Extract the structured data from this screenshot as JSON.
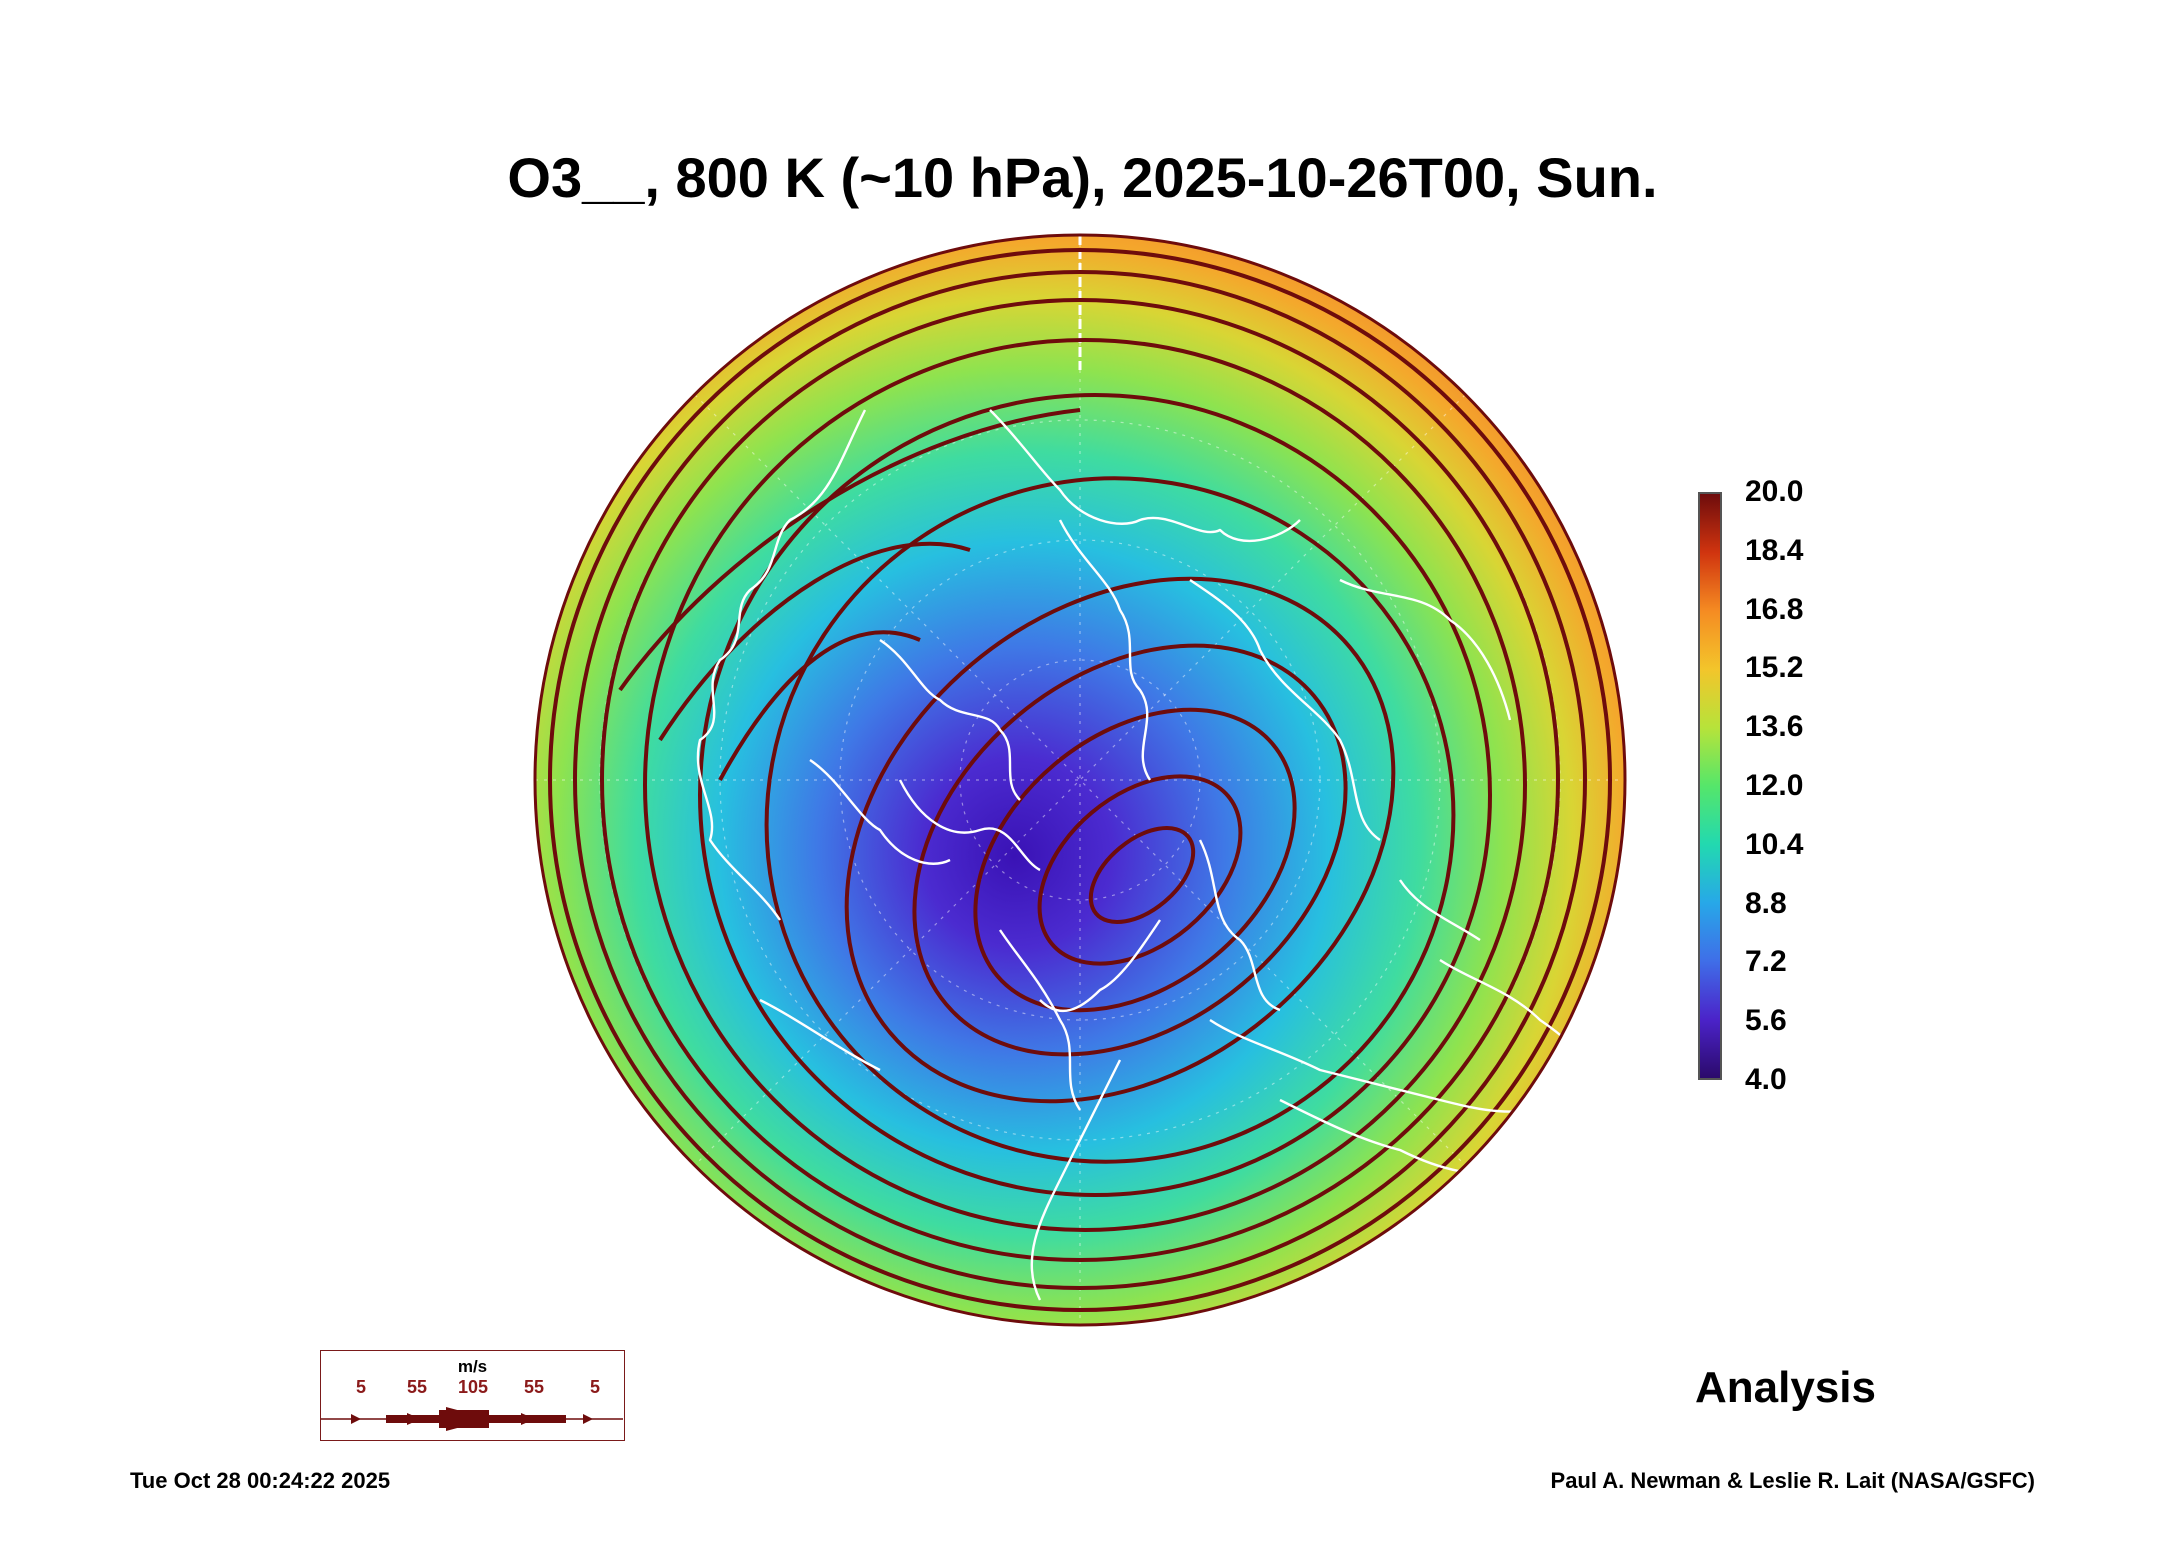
{
  "title": "O3__, 800 K (~10 hPa), 2025-10-26T00, Sun.",
  "colorbar": {
    "labels": [
      "20.0",
      "18.4",
      "16.8",
      "15.2",
      "13.6",
      "12.0",
      "10.4",
      "8.8",
      "7.2",
      "5.6",
      "4.0"
    ],
    "min": 4.0,
    "max": 20.0,
    "colors": [
      "#2b0a6b",
      "#4b23c9",
      "#3f6ee8",
      "#27a8e8",
      "#22d9b0",
      "#55e66a",
      "#b7e33a",
      "#f3c52b",
      "#f58b22",
      "#d0340f",
      "#6e0c0c"
    ]
  },
  "wind_legend": {
    "units": "m/s",
    "ticks": [
      "5",
      "55",
      "105",
      "55",
      "5"
    ],
    "arrow_color": "#6e0c0c"
  },
  "map": {
    "low_color": "#3a12b5",
    "high_color": "#f28a2a",
    "streamline_color": "#6e0c0c",
    "coastline_color": "#ffffff"
  },
  "label": "Analysis",
  "footer": {
    "timestamp": "Tue Oct 28 00:24:22 2025",
    "credit": "Paul A. Newman & Leslie R. Lait (NASA/GSFC)"
  }
}
